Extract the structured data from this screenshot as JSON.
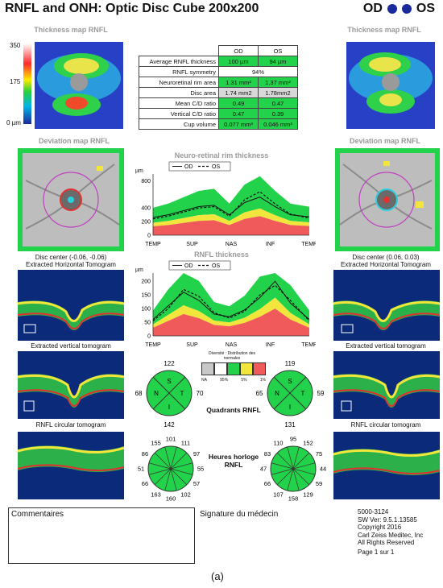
{
  "header": {
    "title": "RNFL and ONH: Optic Disc Cube 200x200",
    "od_label": "OD",
    "os_label": "OS"
  },
  "thickness_map": {
    "title_left": "Thickness map RNFL",
    "title_right": "Thickness map RNFL",
    "scale_top": "350",
    "scale_mid": "175",
    "scale_bottom": "0 µm"
  },
  "params_table": {
    "col_od": "OD",
    "col_os": "OS",
    "rows": [
      {
        "label": "Average RNFL thickness",
        "od": "100 µm",
        "os": "94 µm"
      },
      {
        "label": "RNFL symmetry",
        "both": "94%"
      },
      {
        "label": "Neuroretinal rim area",
        "od": "1.31 mm²",
        "os": "1.37 mm²"
      },
      {
        "label": "Disc area",
        "od": "1.74 mm2",
        "os": "1.78mm2"
      },
      {
        "label": "Mean C/D ratio",
        "od": "0.49",
        "os": "0.47"
      },
      {
        "label": "Vertical C/D ratio",
        "od": "0.47",
        "os": "0.39"
      },
      {
        "label": "Cup volume",
        "od": "0.077 mm³",
        "os": "0.046 mm³"
      }
    ]
  },
  "deviation_map": {
    "title_left": "Deviation map RNFL",
    "title_right": "Deviation map RNFL",
    "disc_center_left": "Disc center (-0.06, -0.06)",
    "disc_center_right": "Disc center (0.06, 0.03)"
  },
  "tomograms": {
    "horizontal_left": "Extracted Horizontal Tomogram",
    "horizontal_right": "Extracted Horizontal Tomogram",
    "vertical_left": "Extracted vertical tomogram",
    "vertical_right": "Extracted vertical tomogram",
    "circular_left": "RNFL circular tomogram",
    "circular_right": "RNFL circular tomogram"
  },
  "chart_data": [
    {
      "type": "line",
      "title": "Neuro-retinal rim thickness",
      "ylabel": "µm",
      "ylim": [
        0,
        900
      ],
      "yticks": [
        "800",
        "400",
        "200",
        "0"
      ],
      "xticks": [
        "TEMP",
        "SUP",
        "NAS",
        "INF",
        "TEMP"
      ],
      "legend": {
        "od": "OD",
        "os": "OS"
      },
      "x": [
        0,
        25,
        50,
        75,
        100,
        125,
        150,
        175,
        200,
        225,
        256
      ],
      "series": [
        {
          "name": "OD",
          "values": [
            260,
            300,
            360,
            420,
            440,
            300,
            480,
            560,
            420,
            300,
            270
          ]
        },
        {
          "name": "OS",
          "values": [
            240,
            280,
            340,
            400,
            420,
            280,
            520,
            640,
            460,
            310,
            250
          ]
        }
      ]
    },
    {
      "type": "line",
      "title": "RNFL thickness",
      "ylabel": "µm",
      "ylim": [
        0,
        230
      ],
      "yticks": [
        "200",
        "150",
        "100",
        "50",
        "0"
      ],
      "xticks": [
        "TEMP",
        "SUP",
        "NAS",
        "INF",
        "TEMP"
      ],
      "legend": {
        "od": "OD",
        "os": "OS"
      },
      "x": [
        0,
        25,
        50,
        75,
        100,
        125,
        150,
        175,
        200,
        225,
        256
      ],
      "series": [
        {
          "name": "OD",
          "values": [
            60,
            110,
            160,
            130,
            80,
            70,
            95,
            140,
            200,
            120,
            60
          ]
        },
        {
          "name": "OS",
          "values": [
            55,
            100,
            170,
            145,
            85,
            65,
            90,
            150,
            185,
            130,
            55
          ]
        }
      ]
    }
  ],
  "diversity_legend": {
    "title": "Diversité : Distribution des normales",
    "na": "NA",
    "p95": "95%",
    "p5": "5%",
    "p1": "1%"
  },
  "quadrants": {
    "label": "Quadrants RNFL",
    "od": {
      "top": "122",
      "left": "68",
      "right": "70",
      "bottom": "142",
      "S": "S",
      "N": "N",
      "I": "I",
      "T": "T"
    },
    "os": {
      "top": "119",
      "left": "65",
      "right": "59",
      "bottom": "131",
      "S": "S",
      "N": "N",
      "I": "I",
      "T": "T"
    }
  },
  "clock_hours": {
    "label": "Heures horloge RNFL",
    "od": [
      "101",
      "111",
      "97",
      "55",
      "57",
      "102",
      "160",
      "163",
      "66",
      "51",
      "86",
      "155"
    ],
    "os": [
      "95",
      "152",
      "75",
      "44",
      "59",
      "129",
      "158",
      "107",
      "66",
      "47",
      "83",
      "110"
    ]
  },
  "footer": {
    "comments": "Commentaires",
    "signature": "Signature du médecin",
    "info": [
      "5000-3124",
      "SW Ver: 9.5.1.13585",
      "Copyright 2016",
      "Carl Zeiss Meditec, Inc",
      "All Rights Reserved"
    ],
    "page": "Page 1 sur 1",
    "figure_label": "(a)"
  },
  "colors": {
    "green": "#22d24a",
    "yellow": "#f2e63c",
    "red": "#f05a5a",
    "od_dot": "#1a2a9c"
  }
}
